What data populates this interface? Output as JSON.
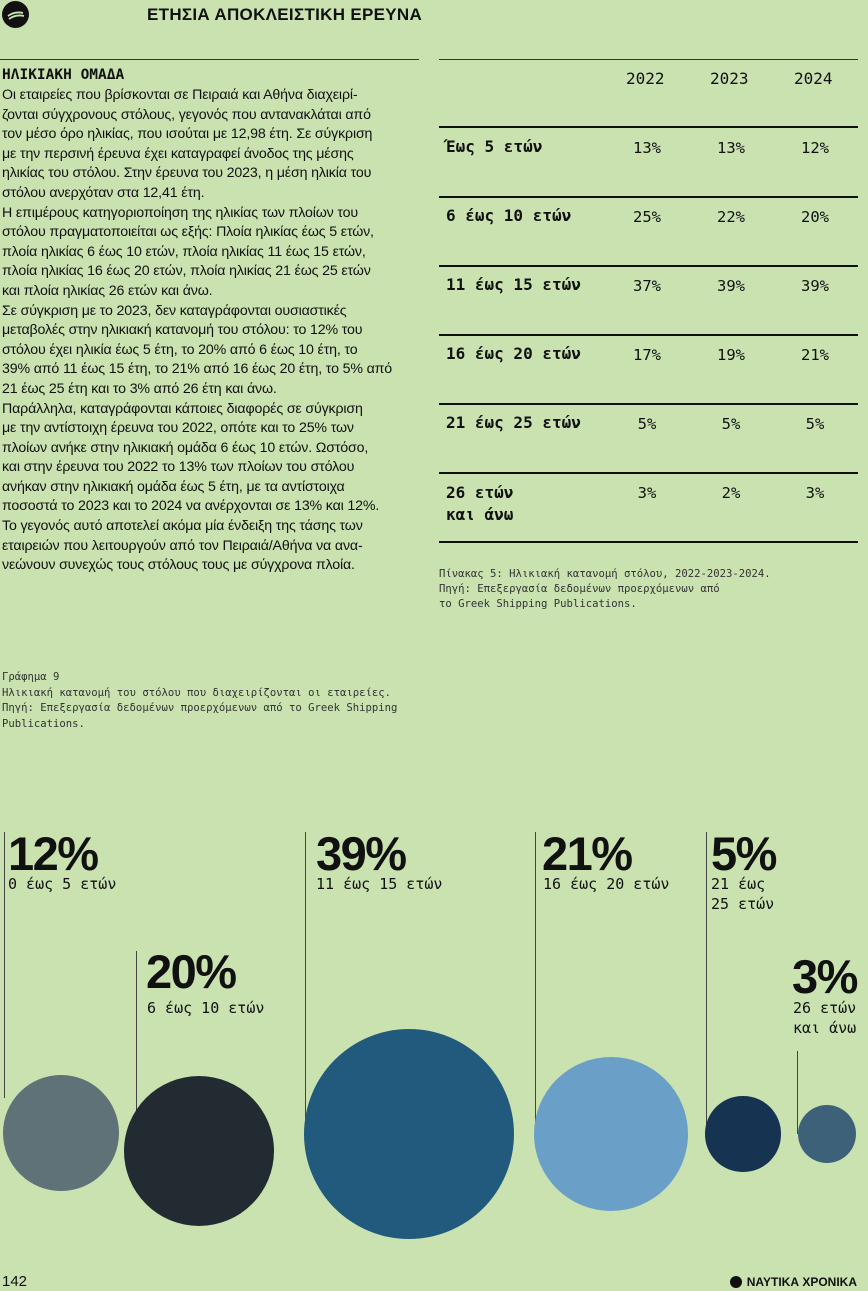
{
  "header": {
    "title": "ΕΤΗΣΙΑ ΑΠΟΚΛΕΙΣΤΙΚΗ ΕΡΕΥΝΑ",
    "logo_icon": "ship-logo-icon"
  },
  "section": {
    "title": "ΗΛΙΚΙΑΚΗ ΟΜΑΔΑ",
    "lines": [
      "Οι εταιρείες που βρίσκονται σε Πειραιά και Αθήνα διαχειρί-",
      "ζονται σύγχρονους στόλους, γεγονός που αντανακλάται από",
      "τον μέσο όρο ηλικίας, που ισούται με 12,98 έτη. Σε σύγκριση",
      "με την περσινή έρευνα έχει καταγραφεί άνοδος της μέσης",
      "ηλικίας του στόλου. Στην έρευνα του 2023, η μέση ηλικία του",
      "στόλου ανερχόταν στα 12,41 έτη.",
      "Η επιμέρους κατηγοριοποίηση της ηλικίας των πλοίων του",
      "στόλου πραγματοποιείται ως εξής: Πλοία ηλικίας έως 5 ετών,",
      "πλοία ηλικίας 6 έως 10 ετών, πλοία ηλικίας 11 έως 15 ετών,",
      "πλοία ηλικίας 16 έως 20 ετών, πλοία ηλικίας 21 έως 25 ετών",
      "και πλοία ηλικίας 26 ετών και άνω.",
      "Σε σύγκριση με το 2023, δεν καταγράφονται ουσιαστικές",
      "μεταβολές στην ηλικιακή κατανομή του στόλου: το 12% του",
      "στόλου έχει ηλικία έως 5 έτη, το 20% από 6 έως 10 έτη, το",
      "39% από 11 έως 15 έτη, το 21% από 16 έως 20 έτη, το 5% από",
      "21 έως 25 έτη και το 3% από 26 έτη και άνω.",
      "Παράλληλα, καταγράφονται κάποιες διαφορές σε σύγκριση",
      "με την αντίστοιχη έρευνα του 2022, οπότε και το 25% των",
      "πλοίων ανήκε στην ηλικιακή ομάδα 6 έως 10 ετών. Ωστόσο,",
      "και στην έρευνα του 2022 το 13% των πλοίων του στόλου",
      "ανήκαν στην ηλικιακή ομάδα έως 5 έτη, με τα αντίστοιχα",
      "ποσοστά το 2023 και το 2024 να ανέρχονται σε 13% και 12%.",
      "Το γεγονός αυτό αποτελεί ακόμα μία ένδειξη της τάσης των",
      "εταιρειών που λειτουργούν από τον Πειραιά/Αθήνα να ανα-",
      "νεώνουν συνεχώς τους στόλους τους με σύγχρονα πλοία."
    ]
  },
  "table": {
    "years": [
      "2022",
      "2023",
      "2024"
    ],
    "rows": [
      {
        "label": "Έως 5 ετών",
        "values": [
          "13%",
          "13%",
          "12%"
        ]
      },
      {
        "label": "6 έως 10 ετών",
        "values": [
          "25%",
          "22%",
          "20%"
        ]
      },
      {
        "label": "11 έως 15 ετών",
        "values": [
          "37%",
          "39%",
          "39%"
        ]
      },
      {
        "label": "16 έως 20 ετών",
        "values": [
          "17%",
          "19%",
          "21%"
        ]
      },
      {
        "label": "21 έως 25 ετών",
        "values": [
          "5%",
          "5%",
          "5%"
        ]
      },
      {
        "label_line1": "26 ετών",
        "label_line2": "και άνω",
        "values": [
          "3%",
          "2%",
          "3%"
        ]
      }
    ],
    "caption": [
      "Πίνακας 5: Ηλικιακή κατανομή στόλου, 2022-2023-2024.",
      "Πηγή: Επεξεργασία δεδομένων προερχόμενων από",
      "το Greek Shipping Publications."
    ]
  },
  "graph": {
    "caption": [
      "Γράφημα 9",
      "Ηλικιακή κατανομή του στόλου που διαχειρίζονται οι εταιρείες.",
      "Πηγή: Επεξεργασία δεδομένων προερχόμενων από το Greek Shipping",
      "Publications."
    ],
    "bubbles": [
      {
        "pct": "12%",
        "value": 12,
        "label1": "0 έως 5 ετών",
        "label2": "",
        "color": "#5f7278"
      },
      {
        "pct": "20%",
        "value": 20,
        "label1": "6 έως 10 ετών",
        "label2": "",
        "color": "#212b31"
      },
      {
        "pct": "39%",
        "value": 39,
        "label1": "11 έως 15 ετών",
        "label2": "",
        "color": "#225a7e"
      },
      {
        "pct": "21%",
        "value": 21,
        "label1": "16 έως 20 ετών",
        "label2": "",
        "color": "#6a9fc8"
      },
      {
        "pct": "5%",
        "value": 5,
        "label1": "21 έως",
        "label2": "25 ετών",
        "color": "#163452"
      },
      {
        "pct": "3%",
        "value": 3,
        "label1": "26 ετών",
        "label2": "και άνω",
        "color": "#3d6179"
      }
    ]
  },
  "footer": {
    "page_number": "142",
    "brand": "ΝΑΥΤΙΚΑ ΧΡΟΝΙΚΑ"
  }
}
